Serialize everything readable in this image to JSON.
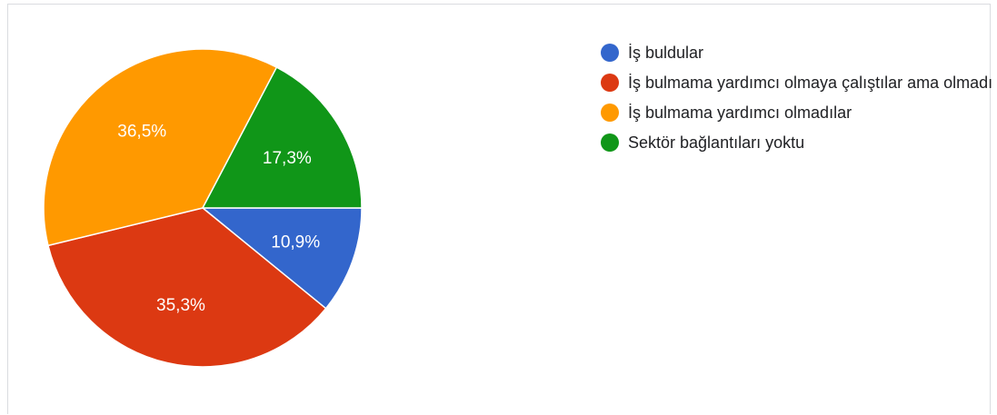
{
  "chart_data": {
    "type": "pie",
    "slices": [
      {
        "name": "İş buldular",
        "value": 10.9,
        "label": "10,9%",
        "color": "#3366cc"
      },
      {
        "name": "İş bulmama yardımcı olmaya çalıştılar ama olmadı",
        "value": 35.3,
        "label": "35,3%",
        "color": "#dc3912"
      },
      {
        "name": "İş bulmama yardımcı olmadılar",
        "value": 36.5,
        "label": "36,5%",
        "color": "#ff9900"
      },
      {
        "name": "Sektör bağlantıları yoktu",
        "value": 17.3,
        "label": "17,3%",
        "color": "#109618"
      }
    ],
    "legend": "right"
  }
}
